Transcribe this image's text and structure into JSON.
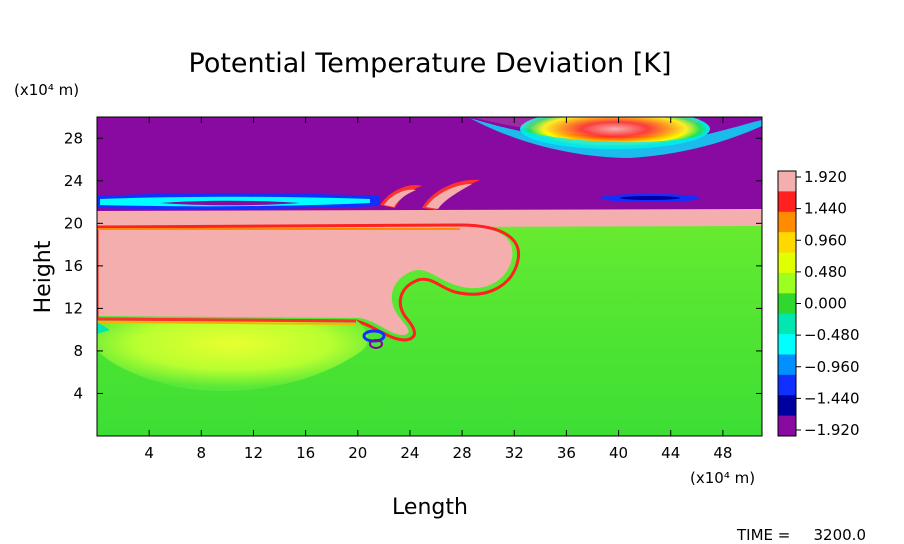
{
  "chart_data": {
    "type": "heatmap",
    "title": "Potential Temperature Deviation [K]",
    "xlabel": "Length",
    "ylabel": "Height",
    "x_unit": "(x10⁴ m)",
    "y_unit": "(x10⁴ m)",
    "x_ticks": [
      4,
      8,
      12,
      16,
      20,
      24,
      28,
      32,
      36,
      40,
      44,
      48
    ],
    "y_ticks": [
      4,
      8,
      12,
      16,
      20,
      24,
      28
    ],
    "xlim": [
      0,
      51
    ],
    "ylim": [
      0,
      30
    ],
    "colorbar_labels": [
      "1.920",
      "1.440",
      "0.960",
      "0.480",
      "0.000",
      "−0.480",
      "−0.960",
      "−1.440",
      "−1.920"
    ],
    "colorbar_values": [
      1.92,
      1.44,
      0.96,
      0.48,
      0.0,
      -0.48,
      -0.96,
      -1.44,
      -1.92
    ],
    "colorbar_colors": [
      "#f4aeae",
      "#ff2020",
      "#ff8c00",
      "#ffd800",
      "#e0ff00",
      "#9cff20",
      "#2ed82e",
      "#00e8b0",
      "#00ffff",
      "#0090ff",
      "#1030ff",
      "#0000a0",
      "#880aa0"
    ],
    "regions": [
      {
        "name": "background",
        "value": 0.15,
        "color": "#2ed82e"
      },
      {
        "name": "upper-layer",
        "value": -1.92,
        "color": "#880aa0"
      },
      {
        "name": "warm-layer",
        "value": 1.92,
        "color": "#f4aeae"
      },
      {
        "name": "cool-lens",
        "value": 0.5,
        "color": "#9cff20"
      },
      {
        "name": "warm-blob-top",
        "value": 1.92,
        "color": "#f4aeae",
        "x": 39,
        "y": 28.8
      }
    ],
    "time_label": "TIME =",
    "time_value": "3200.0"
  }
}
